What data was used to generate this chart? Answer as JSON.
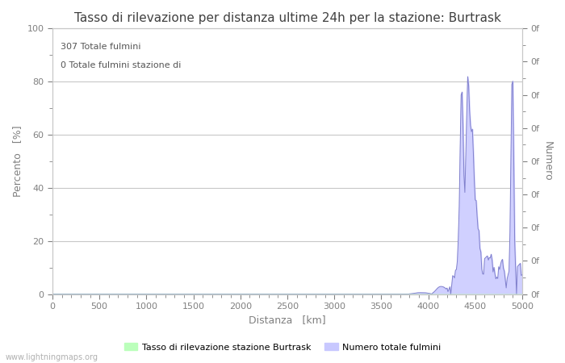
{
  "title": "Tasso di rilevazione per distanza ultime 24h per la stazione: Burtrask",
  "xlabel": "Distanza   [km]",
  "ylabel_left": "Percento   [%]",
  "ylabel_right": "Numero",
  "annotation_lines": [
    "307 Totale fulmini",
    "0 Totale fulmini stazione di"
  ],
  "xlim": [
    0,
    5000
  ],
  "ylim_left": [
    0,
    100
  ],
  "x_ticks": [
    0,
    500,
    1000,
    1500,
    2000,
    2500,
    3000,
    3500,
    4000,
    4500,
    5000
  ],
  "y_ticks_left": [
    0,
    20,
    40,
    60,
    80,
    100
  ],
  "y_ticks_right_labels": [
    "0f",
    "0f",
    "0f",
    "0f",
    "0f",
    "0f",
    "0f",
    "0f",
    "0f"
  ],
  "right_ytick_positions": [
    0,
    12.5,
    25,
    37.5,
    50,
    62.5,
    75,
    87.5,
    100
  ],
  "legend_labels": [
    "Tasso di rilevazione stazione Burtrask",
    "Numero totale fulmini"
  ],
  "legend_colors": [
    "#bbffbb",
    "#c8c8ff"
  ],
  "line_color": "#8080cc",
  "fill_color": "#d0d0ff",
  "grid_color": "#c8c8c8",
  "background_color": "#ffffff",
  "text_color": "#808080",
  "title_color": "#404040",
  "watermark": "www.lightningmaps.org",
  "title_fontsize": 11,
  "axis_fontsize": 9,
  "tick_fontsize": 8,
  "annotation_fontsize": 8
}
